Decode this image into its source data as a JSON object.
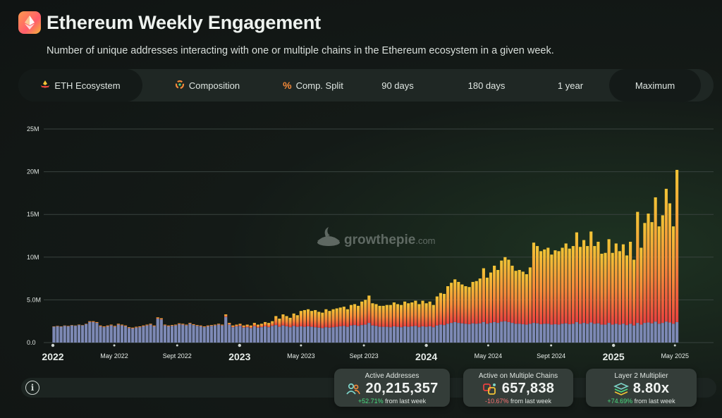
{
  "header": {
    "title": "Ethereum Weekly Engagement",
    "subtitle": "Number of unique addresses interacting with one or multiple chains in the Ethereum ecosystem in a given week."
  },
  "nav": {
    "items": [
      {
        "label": "ETH Ecosystem",
        "icon": "ethereum-ecosystem-icon"
      },
      {
        "label": "Composition",
        "icon": "composition-icon"
      },
      {
        "label": "Comp. Split",
        "icon": "percent-icon"
      },
      {
        "label": "90 days"
      },
      {
        "label": "180 days"
      },
      {
        "label": "1 year"
      },
      {
        "label": "Maximum",
        "active": true
      }
    ]
  },
  "watermark": {
    "brand": "growthepie",
    "suffix": ".com"
  },
  "cards": [
    {
      "label": "Active Addresses",
      "value": "20,215,357",
      "change": "+52.71%",
      "change_suffix": "from last week",
      "icon": "users-icon"
    },
    {
      "label": "Active on Multiple Chains",
      "value": "657,838",
      "change": "-10.67%",
      "change_suffix": "from last week",
      "icon": "multichain-icon"
    },
    {
      "label": "Layer 2 Multiplier",
      "value": "8.80x",
      "change": "+74.69%",
      "change_suffix": "from last week",
      "icon": "layers-icon"
    }
  ],
  "colors": {
    "bar_base": "#7d89b5",
    "bar_low": "#e8413f",
    "bar_mid": "#f58a3a",
    "bar_top": "#f2c436",
    "positive": "#4ade80",
    "negative": "#f87171"
  },
  "chart_data": {
    "type": "bar",
    "stacked": true,
    "ylim": [
      0,
      25000000
    ],
    "y_ticks": [
      0,
      5000000,
      10000000,
      15000000,
      20000000,
      25000000
    ],
    "y_tick_labels": [
      "0.0",
      "5.0M",
      "10M",
      "15M",
      "20M",
      "25M"
    ],
    "grid": true,
    "x_range": [
      "2022-01-01",
      "2025-07-10"
    ],
    "x_ticks": [
      {
        "date": "2022-01-01",
        "label": "2022",
        "major": true
      },
      {
        "date": "2022-05-01",
        "label": "May 2022"
      },
      {
        "date": "2022-09-01",
        "label": "Sept 2022"
      },
      {
        "date": "2023-01-01",
        "label": "2023",
        "major": true
      },
      {
        "date": "2023-05-01",
        "label": "May 2023"
      },
      {
        "date": "2023-09-01",
        "label": "Sept 2023"
      },
      {
        "date": "2024-01-01",
        "label": "2024",
        "major": true
      },
      {
        "date": "2024-05-01",
        "label": "May 2024"
      },
      {
        "date": "2024-09-01",
        "label": "Sept 2024"
      },
      {
        "date": "2025-01-01",
        "label": "2025",
        "major": true
      },
      {
        "date": "2025-05-01",
        "label": "May 2025"
      }
    ],
    "weekly": {
      "start": "2022-01-03",
      "interval_days": 7,
      "total": [
        1900000,
        1950000,
        1900000,
        2000000,
        1950000,
        2050000,
        2000000,
        2100000,
        2050000,
        2200000,
        2500000,
        2500000,
        2400000,
        2000000,
        1900000,
        2000000,
        2100000,
        1950000,
        2200000,
        2100000,
        2000000,
        1800000,
        1750000,
        1850000,
        1900000,
        2000000,
        2100000,
        2200000,
        2000000,
        2950000,
        2850000,
        2100000,
        2000000,
        2050000,
        2100000,
        2250000,
        2200000,
        2100000,
        2300000,
        2150000,
        2050000,
        2000000,
        1900000,
        2000000,
        2050000,
        2100000,
        2200000,
        2100000,
        3300000,
        2300000,
        2000000,
        2100000,
        2200000,
        2000000,
        2100000,
        2000000,
        2300000,
        2100000,
        2200000,
        2400000,
        2300000,
        2500000,
        3100000,
        2800000,
        3300000,
        3100000,
        2900000,
        3400000,
        3200000,
        3700000,
        3800000,
        3900000,
        3700000,
        3800000,
        3600000,
        3500000,
        3900000,
        3700000,
        3900000,
        4000000,
        4100000,
        4200000,
        3900000,
        4400000,
        4500000,
        4300000,
        4800000,
        5000000,
        5500000,
        4600000,
        4500000,
        4300000,
        4300000,
        4400000,
        4400000,
        4700000,
        4500000,
        4400000,
        4800000,
        4600000,
        4700000,
        4900000,
        4500000,
        4900000,
        4600000,
        4800000,
        4400000,
        5400000,
        5800000,
        5700000,
        6600000,
        7000000,
        7400000,
        7100000,
        6800000,
        6600000,
        6500000,
        7100000,
        7200000,
        7500000,
        8700000,
        7600000,
        8200000,
        9000000,
        8500000,
        9600000,
        10000000,
        9700000,
        9000000,
        8400000,
        8500000,
        8300000,
        8000000,
        8800000,
        11700000,
        11300000,
        10700000,
        10900000,
        11100000,
        10300000,
        10800000,
        10700000,
        11100000,
        11600000,
        11000000,
        11300000,
        12900000,
        11200000,
        12000000,
        11300000,
        13000000,
        11300000,
        11800000,
        10400000,
        10500000,
        12100000,
        10500000,
        11600000,
        10700000,
        11500000,
        10200000,
        11800000,
        9700000,
        15300000,
        11100000,
        14000000,
        15100000,
        14100000,
        17000000,
        13600000,
        14900000,
        18000000,
        16300000,
        13600000,
        20215357
      ],
      "base": [
        1850000,
        1900000,
        1850000,
        1950000,
        1900000,
        2000000,
        1950000,
        2050000,
        2000000,
        2150000,
        2400000,
        2400000,
        2300000,
        1900000,
        1800000,
        1900000,
        2000000,
        1850000,
        2100000,
        2000000,
        1900000,
        1700000,
        1650000,
        1750000,
        1800000,
        1900000,
        2000000,
        2100000,
        1900000,
        2800000,
        2700000,
        2000000,
        1900000,
        1950000,
        2000000,
        2150000,
        2100000,
        2000000,
        2200000,
        2050000,
        1950000,
        1900000,
        1800000,
        1900000,
        1950000,
        2000000,
        2100000,
        2000000,
        3000000,
        2100000,
        1800000,
        1900000,
        1950000,
        1750000,
        1800000,
        1700000,
        1900000,
        1750000,
        1800000,
        1900000,
        1800000,
        1950000,
        2050000,
        1850000,
        2000000,
        1900000,
        1800000,
        1950000,
        1850000,
        1900000,
        1850000,
        1900000,
        1850000,
        1800000,
        1750000,
        1700000,
        1800000,
        1750000,
        1800000,
        1850000,
        1900000,
        1950000,
        1850000,
        2000000,
        2050000,
        1950000,
        2050000,
        2100000,
        2300000,
        2000000,
        1950000,
        1850000,
        1850000,
        1850000,
        1800000,
        1900000,
        1850000,
        1800000,
        1900000,
        1850000,
        1900000,
        1950000,
        1800000,
        1900000,
        1850000,
        1900000,
        1800000,
        2000000,
        2100000,
        2050000,
        2200000,
        2300000,
        2400000,
        2300000,
        2250000,
        2200000,
        2150000,
        2250000,
        2200000,
        2250000,
        2400000,
        2200000,
        2300000,
        2400000,
        2300000,
        2450000,
        2500000,
        2400000,
        2300000,
        2200000,
        2200000,
        2150000,
        2100000,
        2200000,
        2300000,
        2250000,
        2150000,
        2200000,
        2200000,
        2100000,
        2150000,
        2100000,
        2200000,
        2250000,
        2150000,
        2200000,
        2400000,
        2200000,
        2300000,
        2200000,
        2350000,
        2200000,
        2250000,
        2100000,
        2100000,
        2300000,
        2100000,
        2200000,
        2100000,
        2200000,
        2050000,
        2200000,
        2000000,
        2300000,
        2100000,
        2300000,
        2350000,
        2250000,
        2450000,
        2200000,
        2300000,
        2450000,
        2350000,
        2200000,
        2400000
      ]
    }
  }
}
